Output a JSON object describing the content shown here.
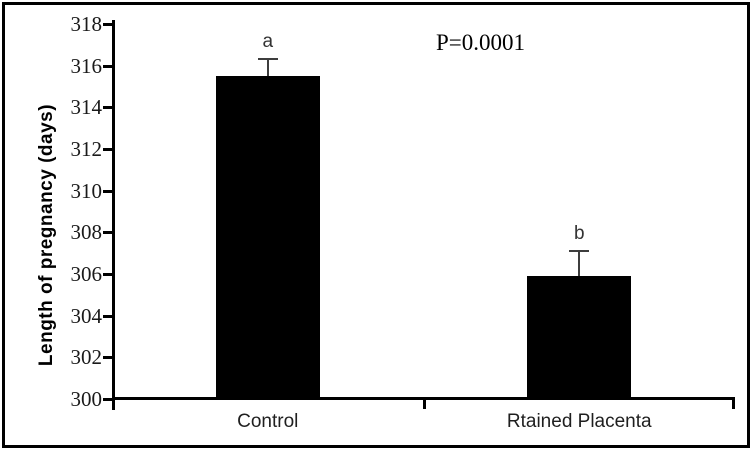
{
  "chart_data": {
    "type": "bar",
    "title": "",
    "xlabel": "",
    "ylabel": "Length of pregnancy (days)",
    "annotation": "P=0.0001",
    "categories": [
      "Control",
      "Rtained Placenta"
    ],
    "values": [
      315.5,
      305.9
    ],
    "error_plus": [
      0.8,
      1.2
    ],
    "sig_letters": [
      "a",
      "b"
    ],
    "ylim": [
      300,
      318
    ],
    "ytick_step": 2,
    "ytick_labels": [
      "300",
      "302",
      "304",
      "306",
      "308",
      "310",
      "312",
      "314",
      "316",
      "318"
    ],
    "grid": false,
    "legend": "none",
    "bar_color": "#000000",
    "error_bar_color": "#3d3d3d",
    "axis_color": "#000000",
    "tick_label_color": "#1a1a1a",
    "background_color": "#ffffff",
    "frame_color": "#000000"
  }
}
